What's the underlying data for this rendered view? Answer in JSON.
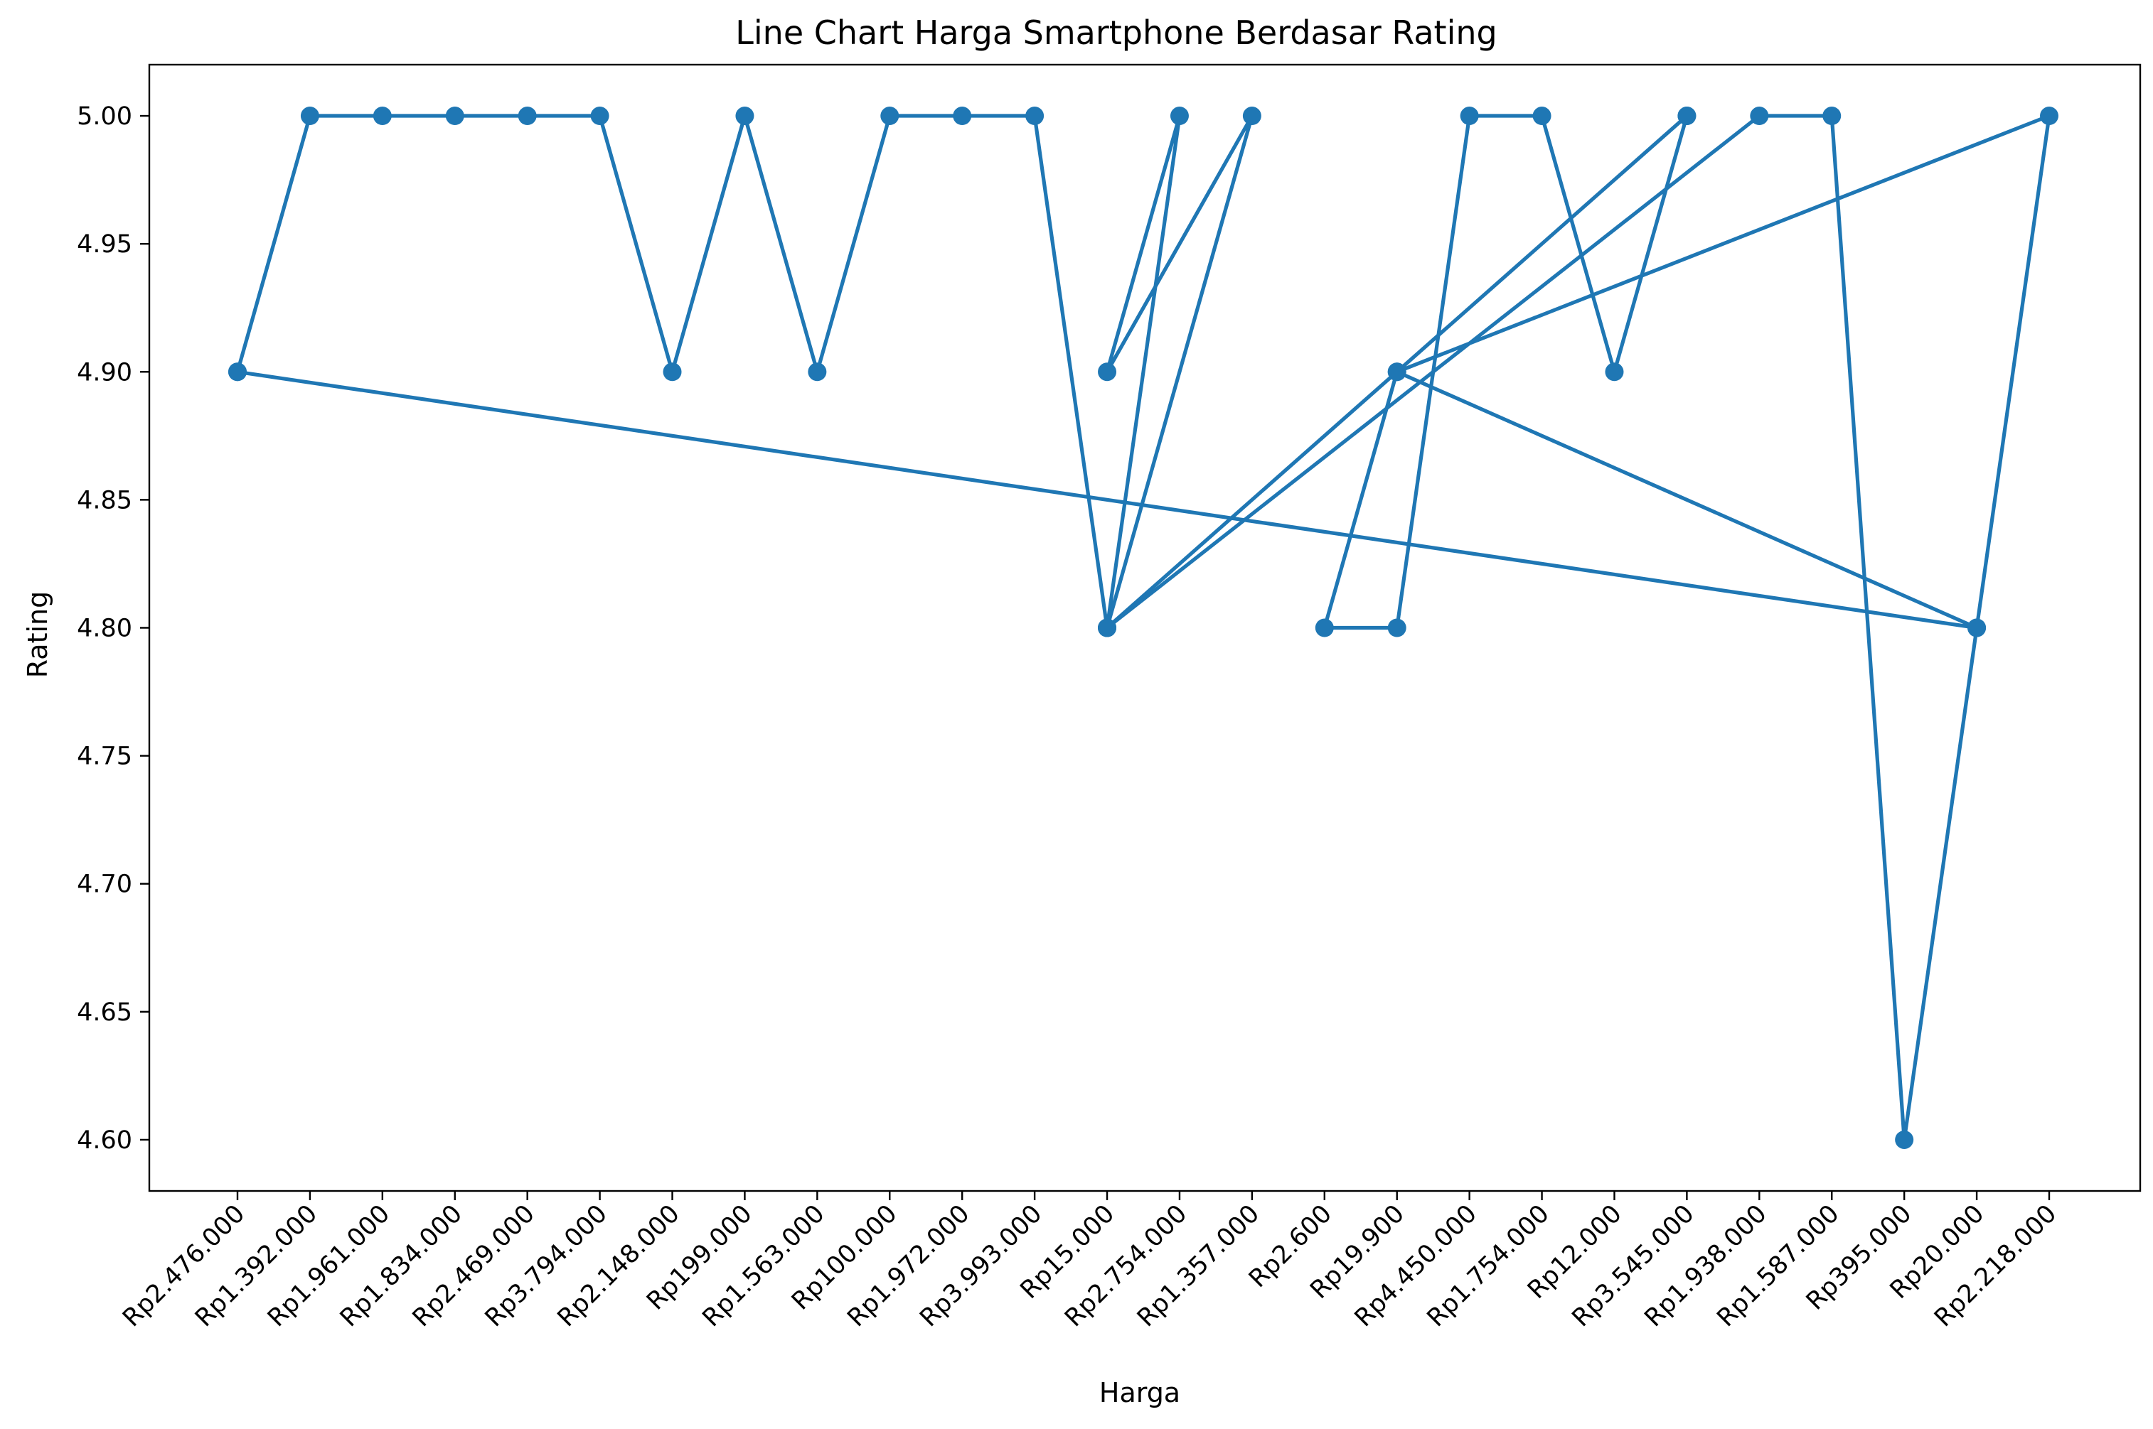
{
  "chart_data": {
    "type": "line",
    "title": "Line Chart Harga Smartphone Berdasar Rating",
    "xlabel": "Harga",
    "ylabel": "Rating",
    "ylim": [
      4.58,
      5.02
    ],
    "yticks": [
      "4.60",
      "4.65",
      "4.70",
      "4.75",
      "4.80",
      "4.85",
      "4.90",
      "4.95",
      "5.00"
    ],
    "grid": false,
    "legend": "none",
    "categories": [
      "Rp2.476.000",
      "Rp1.392.000",
      "Rp1.961.000",
      "Rp1.834.000",
      "Rp2.469.000",
      "Rp3.794.000",
      "Rp2.148.000",
      "Rp199.000",
      "Rp1.563.000",
      "Rp100.000",
      "Rp1.972.000",
      "Rp3.993.000",
      "Rp15.000",
      "Rp2.754.000",
      "Rp1.357.000",
      "Rp2.600",
      "Rp19.900",
      "Rp4.450.000",
      "Rp1.754.000",
      "Rp12.000",
      "Rp3.545.000",
      "Rp1.938.000",
      "Rp1.587.000",
      "Rp395.000",
      "Rp20.000",
      "Rp2.218.000"
    ],
    "series": [
      {
        "color": "#1f77b4",
        "x": [
          "Rp2.476.000",
          "Rp1.392.000",
          "Rp1.961.000",
          "Rp1.834.000",
          "Rp2.469.000",
          "Rp3.794.000",
          "Rp2.148.000",
          "Rp199.000",
          "Rp1.563.000",
          "Rp100.000",
          "Rp1.972.000",
          "Rp3.993.000",
          "Rp15.000",
          "Rp2.754.000",
          "Rp15.000",
          "Rp1.357.000",
          "Rp15.000",
          "Rp3.545.000",
          "Rp19.900",
          "Rp20.000",
          "Rp2.476.000"
        ],
        "y": [
          4.9,
          5.0,
          5.0,
          5.0,
          5.0,
          5.0,
          4.9,
          5.0,
          4.9,
          5.0,
          5.0,
          5.0,
          4.8,
          5.0,
          4.9,
          5.0,
          4.8,
          5.0,
          4.9,
          4.8,
          4.9
        ]
      },
      {
        "color": "#1f77b4",
        "x": [
          "Rp15.000",
          "Rp1.938.000",
          "Rp1.587.000",
          "Rp395.000",
          "Rp20.000",
          "Rp2.218.000",
          "Rp19.900",
          "Rp2.600",
          "Rp19.900",
          "Rp4.450.000",
          "Rp1.754.000",
          "Rp12.000",
          "Rp3.545.000"
        ],
        "y": [
          4.8,
          5.0,
          5.0,
          4.6,
          4.8,
          5.0,
          4.9,
          4.8,
          4.8,
          5.0,
          5.0,
          4.9,
          5.0
        ]
      }
    ]
  }
}
